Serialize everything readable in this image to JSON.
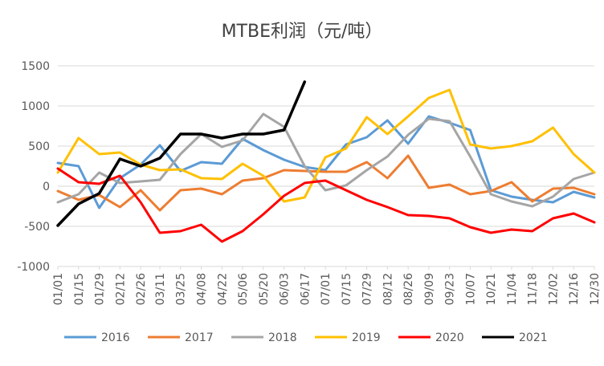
{
  "chart_data": {
    "type": "line",
    "title": "MTBE利润（元/吨）",
    "xlabel": "",
    "ylabel": "",
    "ylim": [
      -1000,
      1500
    ],
    "yticks": [
      -1000,
      -500,
      0,
      500,
      1000,
      1500
    ],
    "ytick_labels": [
      "-1000",
      "-500",
      "0",
      "500",
      "1000",
      "1500"
    ],
    "xlim": [
      "01/01",
      "12/30"
    ],
    "xtick_labels": [
      "01/01",
      "01/15",
      "01/29",
      "02/12",
      "02/26",
      "03/11",
      "03/25",
      "04/08",
      "04/22",
      "05/06",
      "05/20",
      "06/03",
      "06/17",
      "07/01",
      "07/15",
      "07/29",
      "08/12",
      "08/26",
      "09/09",
      "09/23",
      "10/07",
      "10/21",
      "11/04",
      "11/18",
      "12/02",
      "12/16",
      "12/30"
    ],
    "grid": "horizontal",
    "legend_position": "bottom",
    "series": [
      {
        "name": "2016",
        "color": "#5B9BD5",
        "points": [
          [
            "01/01",
            290
          ],
          [
            "01/15",
            250
          ],
          [
            "01/29",
            -270
          ],
          [
            "02/12",
            100
          ],
          [
            "02/26",
            270
          ],
          [
            "03/11",
            510
          ],
          [
            "03/25",
            190
          ],
          [
            "04/08",
            300
          ],
          [
            "04/22",
            280
          ],
          [
            "05/06",
            590
          ],
          [
            "05/20",
            450
          ],
          [
            "06/03",
            330
          ],
          [
            "06/17",
            240
          ],
          [
            "07/01",
            200
          ],
          [
            "07/15",
            520
          ],
          [
            "07/29",
            610
          ],
          [
            "08/12",
            820
          ],
          [
            "08/26",
            530
          ],
          [
            "09/09",
            870
          ],
          [
            "09/23",
            790
          ],
          [
            "10/07",
            700
          ],
          [
            "10/21",
            -50
          ],
          [
            "11/04",
            -130
          ],
          [
            "11/18",
            -170
          ],
          [
            "12/02",
            -200
          ],
          [
            "12/16",
            -70
          ],
          [
            "12/30",
            -140
          ]
        ]
      },
      {
        "name": "2017",
        "color": "#ED7D31",
        "points": [
          [
            "01/01",
            -60
          ],
          [
            "01/15",
            -170
          ],
          [
            "01/29",
            -110
          ],
          [
            "02/12",
            -260
          ],
          [
            "02/26",
            -50
          ],
          [
            "03/11",
            -300
          ],
          [
            "03/25",
            -50
          ],
          [
            "04/08",
            -30
          ],
          [
            "04/22",
            -100
          ],
          [
            "05/06",
            70
          ],
          [
            "05/20",
            100
          ],
          [
            "06/03",
            200
          ],
          [
            "06/17",
            190
          ],
          [
            "07/01",
            180
          ],
          [
            "07/15",
            180
          ],
          [
            "07/29",
            300
          ],
          [
            "08/12",
            100
          ],
          [
            "08/26",
            380
          ],
          [
            "09/09",
            -20
          ],
          [
            "09/23",
            20
          ],
          [
            "10/07",
            -100
          ],
          [
            "10/21",
            -60
          ],
          [
            "11/04",
            50
          ],
          [
            "11/18",
            -190
          ],
          [
            "12/02",
            -30
          ],
          [
            "12/16",
            -20
          ],
          [
            "12/30",
            -100
          ]
        ]
      },
      {
        "name": "2018",
        "color": "#A5A5A5",
        "points": [
          [
            "01/01",
            -200
          ],
          [
            "01/15",
            -100
          ],
          [
            "01/29",
            170
          ],
          [
            "02/12",
            40
          ],
          [
            "02/26",
            60
          ],
          [
            "03/11",
            80
          ],
          [
            "03/25",
            400
          ],
          [
            "04/08",
            650
          ],
          [
            "04/22",
            490
          ],
          [
            "05/06",
            570
          ],
          [
            "05/20",
            900
          ],
          [
            "06/03",
            740
          ],
          [
            "06/17",
            250
          ],
          [
            "07/01",
            -50
          ],
          [
            "07/15",
            10
          ],
          [
            "07/29",
            200
          ],
          [
            "08/12",
            370
          ],
          [
            "08/26",
            640
          ],
          [
            "09/09",
            840
          ],
          [
            "09/23",
            810
          ],
          [
            "10/07",
            370
          ],
          [
            "10/21",
            -100
          ],
          [
            "11/04",
            -190
          ],
          [
            "11/18",
            -250
          ],
          [
            "12/02",
            -130
          ],
          [
            "12/16",
            90
          ],
          [
            "12/30",
            170
          ]
        ]
      },
      {
        "name": "2019",
        "color": "#FFC000",
        "points": [
          [
            "01/01",
            170
          ],
          [
            "01/15",
            600
          ],
          [
            "01/29",
            400
          ],
          [
            "02/12",
            420
          ],
          [
            "02/26",
            270
          ],
          [
            "03/11",
            200
          ],
          [
            "03/25",
            210
          ],
          [
            "04/08",
            100
          ],
          [
            "04/22",
            90
          ],
          [
            "05/06",
            280
          ],
          [
            "05/20",
            130
          ],
          [
            "06/03",
            -190
          ],
          [
            "06/17",
            -140
          ],
          [
            "07/01",
            360
          ],
          [
            "07/15",
            470
          ],
          [
            "07/29",
            860
          ],
          [
            "08/12",
            650
          ],
          [
            "08/26",
            870
          ],
          [
            "09/09",
            1100
          ],
          [
            "09/23",
            1200
          ],
          [
            "10/07",
            520
          ],
          [
            "10/21",
            470
          ],
          [
            "11/04",
            500
          ],
          [
            "11/18",
            560
          ],
          [
            "12/02",
            730
          ],
          [
            "12/16",
            400
          ],
          [
            "12/30",
            170
          ]
        ]
      },
      {
        "name": "2020",
        "color": "#FF0000",
        "points": [
          [
            "01/01",
            220
          ],
          [
            "01/15",
            50
          ],
          [
            "01/29",
            30
          ],
          [
            "02/12",
            130
          ],
          [
            "02/26",
            -200
          ],
          [
            "03/11",
            -580
          ],
          [
            "03/25",
            -560
          ],
          [
            "04/08",
            -480
          ],
          [
            "04/22",
            -690
          ],
          [
            "05/06",
            -560
          ],
          [
            "05/20",
            -350
          ],
          [
            "06/03",
            -120
          ],
          [
            "06/17",
            40
          ],
          [
            "07/01",
            70
          ],
          [
            "07/15",
            -50
          ],
          [
            "07/29",
            -170
          ],
          [
            "08/12",
            -260
          ],
          [
            "08/26",
            -360
          ],
          [
            "09/09",
            -370
          ],
          [
            "09/23",
            -400
          ],
          [
            "10/07",
            -510
          ],
          [
            "10/21",
            -580
          ],
          [
            "11/04",
            -540
          ],
          [
            "11/18",
            -560
          ],
          [
            "12/02",
            -400
          ],
          [
            "12/16",
            -340
          ],
          [
            "12/30",
            -450
          ]
        ]
      },
      {
        "name": "2021",
        "color": "#000000",
        "points": [
          [
            "01/01",
            -490
          ],
          [
            "01/15",
            -220
          ],
          [
            "01/29",
            -90
          ],
          [
            "02/12",
            340
          ],
          [
            "02/26",
            250
          ],
          [
            "03/11",
            350
          ],
          [
            "03/25",
            650
          ],
          [
            "04/08",
            650
          ],
          [
            "04/22",
            600
          ],
          [
            "05/06",
            650
          ],
          [
            "05/20",
            650
          ],
          [
            "06/03",
            700
          ],
          [
            "06/10",
            1000
          ],
          [
            "06/17",
            1300
          ]
        ]
      }
    ]
  }
}
